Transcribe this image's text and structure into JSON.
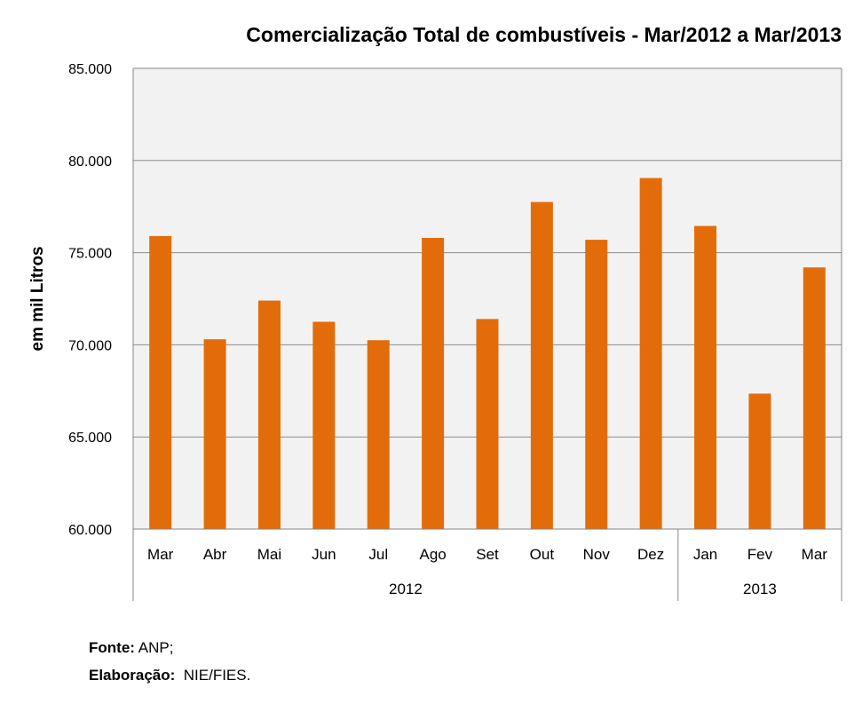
{
  "chart_data": {
    "type": "bar",
    "title": "Comercialização Total de combustíveis  - Mar/2012 a Mar/2013",
    "ylabel": "em mil Litros",
    "xlabel": "",
    "ylim": [
      60000,
      85000
    ],
    "yticks": [
      60000,
      65000,
      70000,
      75000,
      80000,
      85000
    ],
    "ytick_labels": [
      "60.000",
      "65.000",
      "70.000",
      "75.000",
      "80.000",
      "85.000"
    ],
    "grid": true,
    "categories": [
      "Mar",
      "Abr",
      "Mai",
      "Jun",
      "Jul",
      "Ago",
      "Set",
      "Out",
      "Nov",
      "Dez",
      "Jan",
      "Fev",
      "Mar"
    ],
    "groups": [
      {
        "label": "2012",
        "count": 10
      },
      {
        "label": "2013",
        "count": 3
      }
    ],
    "series": [
      {
        "name": "Comercialização Total",
        "color": "#E36C0A",
        "values": [
          75900,
          70300,
          72400,
          71250,
          70250,
          75800,
          71400,
          77750,
          75700,
          79050,
          76450,
          67350,
          74200
        ]
      }
    ]
  },
  "footer": {
    "source_label": "Fonte:",
    "source_value": "ANP;",
    "credit_label": "Elaboração:",
    "credit_value": "NIE/FIES."
  }
}
